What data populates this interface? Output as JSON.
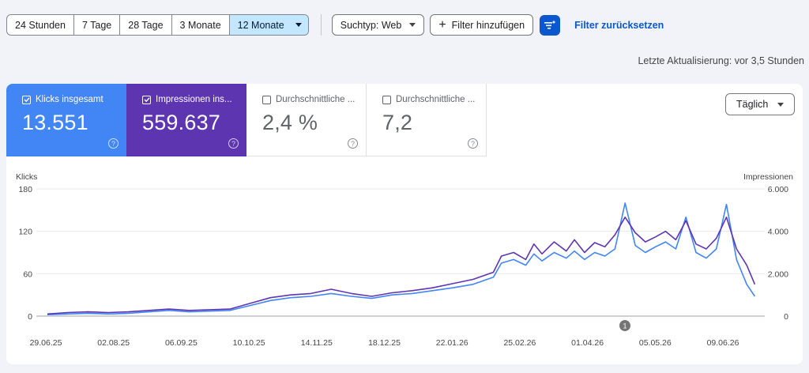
{
  "toolbar": {
    "ranges": [
      "24 Stunden",
      "7 Tage",
      "28 Tage",
      "3 Monate",
      "12 Monate"
    ],
    "search_type": "Suchtyp: Web",
    "add_filter": "Filter hinzufügen",
    "reset_filters": "Filter zurücksetzen"
  },
  "last_update": "Letzte Aktualisierung: vor 3,5 Stunden",
  "metrics": [
    {
      "label": "Klicks insgesamt",
      "value": "13.551",
      "checked": true,
      "color": "#4285f4"
    },
    {
      "label": "Impressionen ins...",
      "value": "559.637",
      "checked": true,
      "color": "#5e35b1"
    },
    {
      "label": "Durchschnittliche ...",
      "value": "2,4 %",
      "checked": false
    },
    {
      "label": "Durchschnittliche ...",
      "value": "7,2",
      "checked": false
    }
  ],
  "granularity": "Täglich",
  "chart_data": {
    "type": "line",
    "left_axis_label": "Klicks",
    "right_axis_label": "Impressionen",
    "left_ticks": [
      "180",
      "120",
      "60",
      "0"
    ],
    "right_ticks": [
      "6.000",
      "4.000",
      "2.000",
      "0"
    ],
    "ylim_left": [
      0,
      180
    ],
    "ylim_right": [
      0,
      6000
    ],
    "x_ticks": [
      "29.06.25",
      "02.08.25",
      "06.09.25",
      "10.10.25",
      "14.11.25",
      "18.12.25",
      "22.01.26",
      "25.02.26",
      "01.04.26",
      "05.05.26",
      "09.06.26"
    ],
    "annotation": "1",
    "series": [
      {
        "color": "#4285f4",
        "axis": "left",
        "points": [
          [
            0,
            2
          ],
          [
            10,
            3
          ],
          [
            20,
            4
          ],
          [
            30,
            3
          ],
          [
            40,
            4
          ],
          [
            50,
            6
          ],
          [
            60,
            8
          ],
          [
            70,
            6
          ],
          [
            80,
            7
          ],
          [
            90,
            8
          ],
          [
            100,
            15
          ],
          [
            110,
            22
          ],
          [
            120,
            26
          ],
          [
            130,
            28
          ],
          [
            140,
            32
          ],
          [
            150,
            28
          ],
          [
            160,
            25
          ],
          [
            170,
            30
          ],
          [
            180,
            32
          ],
          [
            190,
            36
          ],
          [
            200,
            40
          ],
          [
            210,
            45
          ],
          [
            220,
            55
          ],
          [
            224,
            75
          ],
          [
            230,
            80
          ],
          [
            236,
            72
          ],
          [
            240,
            88
          ],
          [
            244,
            78
          ],
          [
            250,
            90
          ],
          [
            256,
            82
          ],
          [
            260,
            92
          ],
          [
            265,
            80
          ],
          [
            270,
            90
          ],
          [
            275,
            85
          ],
          [
            280,
            95
          ],
          [
            285,
            160
          ],
          [
            290,
            100
          ],
          [
            295,
            90
          ],
          [
            300,
            98
          ],
          [
            305,
            105
          ],
          [
            310,
            95
          ],
          [
            315,
            140
          ],
          [
            320,
            90
          ],
          [
            325,
            82
          ],
          [
            330,
            95
          ],
          [
            335,
            158
          ],
          [
            340,
            80
          ],
          [
            345,
            45
          ],
          [
            349,
            28
          ]
        ]
      },
      {
        "color": "#5e35b1",
        "axis": "left",
        "points": [
          [
            0,
            3
          ],
          [
            10,
            5
          ],
          [
            20,
            6
          ],
          [
            30,
            5
          ],
          [
            40,
            6
          ],
          [
            50,
            8
          ],
          [
            60,
            10
          ],
          [
            70,
            8
          ],
          [
            80,
            9
          ],
          [
            90,
            10
          ],
          [
            100,
            18
          ],
          [
            110,
            26
          ],
          [
            120,
            30
          ],
          [
            130,
            32
          ],
          [
            140,
            38
          ],
          [
            150,
            32
          ],
          [
            160,
            28
          ],
          [
            170,
            33
          ],
          [
            180,
            36
          ],
          [
            190,
            40
          ],
          [
            200,
            46
          ],
          [
            210,
            52
          ],
          [
            220,
            62
          ],
          [
            224,
            85
          ],
          [
            230,
            90
          ],
          [
            236,
            80
          ],
          [
            240,
            102
          ],
          [
            244,
            88
          ],
          [
            250,
            105
          ],
          [
            256,
            92
          ],
          [
            260,
            108
          ],
          [
            265,
            90
          ],
          [
            270,
            104
          ],
          [
            275,
            98
          ],
          [
            280,
            115
          ],
          [
            285,
            140
          ],
          [
            290,
            118
          ],
          [
            295,
            105
          ],
          [
            300,
            112
          ],
          [
            305,
            120
          ],
          [
            310,
            108
          ],
          [
            315,
            135
          ],
          [
            320,
            102
          ],
          [
            325,
            95
          ],
          [
            330,
            110
          ],
          [
            335,
            140
          ],
          [
            340,
            95
          ],
          [
            345,
            72
          ],
          [
            349,
            45
          ]
        ]
      }
    ]
  }
}
